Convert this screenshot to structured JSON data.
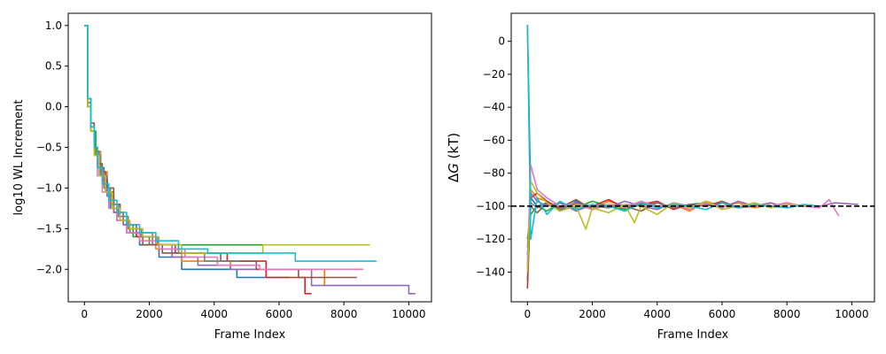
{
  "chart_data": [
    {
      "type": "line",
      "title": "",
      "xlabel": "Frame Index",
      "ylabel": "log10 WL Increment",
      "xlim": [
        -500,
        10700
      ],
      "ylim": [
        -2.4,
        1.15
      ],
      "xticks": [
        0,
        2000,
        4000,
        6000,
        8000,
        10000
      ],
      "yticks": [
        -2.0,
        -1.5,
        -1.0,
        -0.5,
        0.0,
        0.5,
        1.0
      ],
      "xtick_labels": [
        "0",
        "2000",
        "4000",
        "6000",
        "8000",
        "10000"
      ],
      "ytick_labels": [
        "−2.0",
        "−1.5",
        "−1.0",
        "−0.5",
        "0.0",
        "0.5",
        "1.0"
      ],
      "legend": "none",
      "grid": false,
      "series": [
        {
          "color": "#1f77b4",
          "x": [
            0,
            100,
            200,
            300,
            400,
            600,
            800,
            1000,
            1300,
            1700,
            2300,
            3000,
            4700,
            6300
          ],
          "y": [
            1.0,
            0.1,
            -0.25,
            -0.5,
            -0.75,
            -1.0,
            -1.25,
            -1.4,
            -1.55,
            -1.7,
            -1.85,
            -2.0,
            -2.1,
            -2.1
          ]
        },
        {
          "color": "#ff7f0e",
          "x": [
            0,
            100,
            200,
            300,
            500,
            700,
            900,
            1200,
            1600,
            2200,
            3000,
            4500,
            6000,
            7400
          ],
          "y": [
            1.0,
            0.05,
            -0.3,
            -0.55,
            -0.8,
            -1.05,
            -1.3,
            -1.45,
            -1.6,
            -1.75,
            -1.9,
            -2.0,
            -2.0,
            -2.2
          ]
        },
        {
          "color": "#2ca02c",
          "x": [
            0,
            100,
            200,
            350,
            500,
            700,
            900,
            1200,
            1500,
            2000,
            2800,
            3500,
            5600
          ],
          "y": [
            1.0,
            0.0,
            -0.3,
            -0.6,
            -0.85,
            -1.1,
            -1.3,
            -1.45,
            -1.6,
            -1.7,
            -1.7,
            -1.7,
            -1.7
          ]
        },
        {
          "color": "#d62728",
          "x": [
            0,
            100,
            200,
            300,
            450,
            650,
            900,
            1200,
            1600,
            2100,
            2800,
            3600,
            4400,
            5600,
            6800,
            7000
          ],
          "y": [
            1.0,
            0.05,
            -0.3,
            -0.55,
            -0.8,
            -1.05,
            -1.3,
            -1.45,
            -1.6,
            -1.7,
            -1.8,
            -1.8,
            -1.9,
            -2.1,
            -2.3,
            -2.3
          ]
        },
        {
          "color": "#9467bd",
          "x": [
            0,
            100,
            200,
            300,
            500,
            700,
            900,
            1200,
            1600,
            2100,
            2700,
            3500,
            4500,
            5500,
            7000,
            10000,
            10200
          ],
          "y": [
            1.0,
            0.0,
            -0.3,
            -0.6,
            -0.85,
            -1.1,
            -1.3,
            -1.45,
            -1.55,
            -1.7,
            -1.85,
            -1.95,
            -2.0,
            -2.0,
            -2.2,
            -2.3,
            -2.3
          ]
        },
        {
          "color": "#8c564b",
          "x": [
            0,
            100,
            200,
            300,
            400,
            550,
            700,
            900,
            1100,
            1400,
            1800,
            2400,
            3200,
            4200,
            5300,
            6600,
            8400
          ],
          "y": [
            1.0,
            0.1,
            -0.2,
            -0.5,
            -0.7,
            -0.9,
            -1.0,
            -1.2,
            -1.4,
            -1.55,
            -1.7,
            -1.8,
            -1.8,
            -1.9,
            -2.0,
            -2.1,
            -2.1
          ]
        },
        {
          "color": "#e377c2",
          "x": [
            0,
            100,
            200,
            300,
            400,
            550,
            750,
            1000,
            1300,
            1700,
            2300,
            3100,
            4100,
            5400,
            7000,
            8600
          ],
          "y": [
            1.0,
            0.0,
            -0.3,
            -0.6,
            -0.85,
            -1.05,
            -1.25,
            -1.4,
            -1.55,
            -1.65,
            -1.75,
            -1.85,
            -1.95,
            -2.0,
            -2.0,
            -2.0
          ]
        },
        {
          "color": "#7f7f7f",
          "x": [
            0,
            100,
            200,
            300,
            450,
            600,
            800,
            1050,
            1350,
            1750,
            2250,
            2900,
            3700,
            4800
          ],
          "y": [
            1.0,
            0.05,
            -0.3,
            -0.55,
            -0.8,
            -1.0,
            -1.2,
            -1.35,
            -1.5,
            -1.6,
            -1.7,
            -1.8,
            -1.9,
            -1.9
          ]
        },
        {
          "color": "#bcbd22",
          "x": [
            0,
            100,
            200,
            300,
            450,
            650,
            850,
            1100,
            1400,
            1800,
            2300,
            3000,
            4000,
            5500,
            7000,
            8800
          ],
          "y": [
            1.0,
            0.0,
            -0.3,
            -0.6,
            -0.85,
            -1.05,
            -1.25,
            -1.4,
            -1.5,
            -1.6,
            -1.7,
            -1.8,
            -1.8,
            -1.7,
            -1.7,
            -1.7
          ]
        },
        {
          "color": "#17becf",
          "x": [
            0,
            100,
            200,
            300,
            400,
            550,
            750,
            1000,
            1300,
            1700,
            2200,
            2900,
            3800,
            4900,
            6500,
            9000
          ],
          "y": [
            1.0,
            0.1,
            -0.25,
            -0.5,
            -0.75,
            -0.95,
            -1.15,
            -1.3,
            -1.45,
            -1.55,
            -1.65,
            -1.75,
            -1.8,
            -1.8,
            -1.9,
            -1.9
          ]
        }
      ]
    },
    {
      "type": "line",
      "title": "",
      "xlabel": "Frame Index",
      "ylabel": "ΔG (kT)",
      "ylabel_parts": [
        "Δ",
        "G",
        " (kT)"
      ],
      "xlim": [
        -500,
        10700
      ],
      "ylim": [
        -158,
        17
      ],
      "xticks": [
        0,
        2000,
        4000,
        6000,
        8000,
        10000
      ],
      "yticks": [
        -140,
        -120,
        -100,
        -80,
        -60,
        -40,
        -20,
        0
      ],
      "xtick_labels": [
        "0",
        "2000",
        "4000",
        "6000",
        "8000",
        "10000"
      ],
      "ytick_labels": [
        "−140",
        "−120",
        "−100",
        "−80",
        "−60",
        "−40",
        "−20",
        "0"
      ],
      "legend": "none",
      "grid": false,
      "reference_line": {
        "y": -100,
        "style": "dashed",
        "color": "#000000"
      },
      "series": [
        {
          "color": "#1f77b4",
          "x": [
            0,
            100,
            300,
            600,
            1000,
            1500,
            2000,
            2500,
            3000,
            3500,
            4000,
            4500,
            5000,
            5500,
            6000
          ],
          "y": [
            10,
            -95,
            -100,
            -98,
            -103,
            -97,
            -101,
            -99,
            -102,
            -98,
            -100,
            -101,
            -99,
            -98,
            -100
          ]
        },
        {
          "color": "#ff7f0e",
          "x": [
            0,
            100,
            300,
            600,
            1000,
            1500,
            2000,
            2500,
            3000,
            3500,
            4000,
            4500,
            5000,
            5500,
            6000,
            6500,
            7000,
            7500
          ],
          "y": [
            -140,
            -90,
            -95,
            -97,
            -101,
            -99,
            -102,
            -97,
            -100,
            -98,
            -101,
            -99,
            -103,
            -97,
            -100,
            -98,
            -101,
            -99
          ]
        },
        {
          "color": "#2ca02c",
          "x": [
            0,
            100,
            300,
            600,
            1000,
            1500,
            2000,
            2500,
            3000,
            3500,
            4000,
            4500,
            5000,
            5600
          ],
          "y": [
            -120,
            -105,
            -100,
            -103,
            -98,
            -101,
            -97,
            -100,
            -102,
            -99,
            -98,
            -101,
            -100,
            -99
          ]
        },
        {
          "color": "#d62728",
          "x": [
            0,
            100,
            300,
            600,
            1000,
            1500,
            2000,
            2500,
            3000,
            3500,
            4000,
            4500,
            5000,
            5500,
            6000,
            6500,
            7000
          ],
          "y": [
            -150,
            -95,
            -92,
            -97,
            -102,
            -98,
            -100,
            -96,
            -101,
            -99,
            -97,
            -102,
            -99,
            -100,
            -98,
            -101,
            -100
          ]
        },
        {
          "color": "#9467bd",
          "x": [
            0,
            100,
            300,
            600,
            1000,
            1500,
            2000,
            2500,
            3000,
            3500,
            4000,
            4500,
            5000,
            5500,
            6000,
            6500,
            7000,
            7500,
            8000,
            8500,
            9000,
            9500,
            10200
          ],
          "y": [
            -130,
            -92,
            -97,
            -100,
            -98,
            -103,
            -99,
            -101,
            -97,
            -100,
            -102,
            -98,
            -100,
            -99,
            -101,
            -97,
            -100,
            -98,
            -101,
            -99,
            -100,
            -98,
            -99
          ]
        },
        {
          "color": "#8c564b",
          "x": [
            0,
            100,
            300,
            600,
            1000,
            1500,
            2000,
            2500,
            3000,
            3500,
            4000,
            4500,
            5000,
            5500,
            6000,
            6500,
            7000,
            7500,
            8000,
            8400
          ],
          "y": [
            -145,
            -100,
            -104,
            -98,
            -101,
            -96,
            -102,
            -99,
            -100,
            -103,
            -98,
            -101,
            -99,
            -100,
            -97,
            -101,
            -99,
            -100,
            -98,
            -100
          ]
        },
        {
          "color": "#e377c2",
          "x": [
            0,
            100,
            300,
            600,
            1000,
            1500,
            2000,
            2500,
            3000,
            3500,
            4000,
            4500,
            5000,
            5500,
            6000,
            6500,
            7000,
            7500,
            8000,
            8500,
            9000,
            9300,
            9600
          ],
          "y": [
            -135,
            -75,
            -90,
            -95,
            -100,
            -98,
            -102,
            -99,
            -101,
            -97,
            -100,
            -99,
            -102,
            -98,
            -100,
            -101,
            -99,
            -100,
            -98,
            -100,
            -101,
            -96,
            -106
          ]
        },
        {
          "color": "#7f7f7f",
          "x": [
            0,
            100,
            300,
            600,
            1000,
            1500,
            2000,
            2500,
            3000,
            3500,
            4000,
            4500,
            4800
          ],
          "y": [
            -125,
            -98,
            -101,
            -99,
            -102,
            -98,
            -100,
            -101,
            -99,
            -100,
            -98,
            -101,
            -100
          ]
        },
        {
          "color": "#bcbd22",
          "x": [
            0,
            100,
            300,
            600,
            1000,
            1500,
            1800,
            2000,
            2500,
            3000,
            3300,
            3500,
            4000,
            4500,
            5000,
            5500,
            6000,
            6500,
            7000,
            7500,
            8000,
            8500,
            8800
          ],
          "y": [
            -140,
            -85,
            -92,
            -98,
            -103,
            -100,
            -114,
            -101,
            -104,
            -99,
            -110,
            -100,
            -105,
            -98,
            -101,
            -97,
            -102,
            -100,
            -98,
            -101,
            -99,
            -100,
            -99
          ]
        },
        {
          "color": "#17becf",
          "x": [
            0,
            100,
            300,
            600,
            1000,
            1500,
            2000,
            2500,
            3000,
            3500,
            4000,
            4500,
            5000,
            5500,
            6000,
            6500,
            7000,
            7500,
            8000,
            8500,
            9000
          ],
          "y": [
            10,
            -120,
            -95,
            -105,
            -97,
            -102,
            -99,
            -100,
            -103,
            -98,
            -101,
            -99,
            -100,
            -102,
            -98,
            -101,
            -99,
            -100,
            -101,
            -99,
            -100
          ]
        }
      ]
    }
  ]
}
